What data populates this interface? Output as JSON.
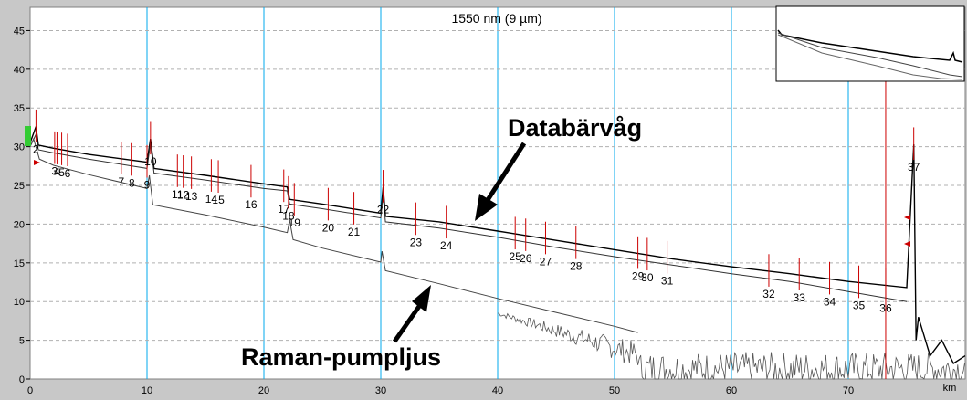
{
  "chart_data": {
    "type": "line",
    "title": "1550 nm (9 µm)",
    "xlabel": "km",
    "ylabel": "",
    "xlim": [
      0,
      80
    ],
    "ylim": [
      0,
      48
    ],
    "x_ticks": [
      0,
      10,
      20,
      30,
      40,
      50,
      60,
      70
    ],
    "y_ticks": [
      0,
      5,
      10,
      15,
      20,
      25,
      30,
      35,
      40,
      45
    ],
    "grid": true,
    "series": [
      {
        "values": [
          [
            0,
            30.5
          ],
          [
            0.5,
            32.6
          ],
          [
            0.7,
            30.2
          ],
          [
            2,
            29.8
          ],
          [
            5,
            29.0
          ],
          [
            10,
            28.0
          ],
          [
            10.3,
            31.0
          ],
          [
            10.6,
            27.2
          ],
          [
            15,
            26.3
          ],
          [
            20,
            25.2
          ],
          [
            22,
            24.8
          ],
          [
            22.2,
            23.2
          ],
          [
            25,
            22.6
          ],
          [
            30,
            21.4
          ],
          [
            30.2,
            24.8
          ],
          [
            30.4,
            21.0
          ],
          [
            35,
            20.3
          ],
          [
            40,
            19.1
          ],
          [
            45,
            17.9
          ],
          [
            50,
            16.7
          ],
          [
            55,
            15.5
          ],
          [
            60,
            14.5
          ],
          [
            65,
            13.6
          ],
          [
            70,
            12.6
          ],
          [
            75,
            11.8
          ],
          [
            75.6,
            30.3
          ],
          [
            75.8,
            5
          ],
          [
            76,
            8
          ],
          [
            77,
            3
          ],
          [
            78,
            5
          ],
          [
            79,
            2
          ],
          [
            80,
            3
          ]
        ]
      },
      {
        "values": [
          [
            0,
            30.0
          ],
          [
            0.5,
            31.6
          ],
          [
            0.7,
            29.6
          ],
          [
            2,
            29.2
          ],
          [
            5,
            28.4
          ],
          [
            10,
            27.2
          ],
          [
            10.3,
            30.5
          ],
          [
            10.6,
            26.6
          ],
          [
            15,
            25.7
          ],
          [
            20,
            24.6
          ],
          [
            22,
            24.3
          ],
          [
            22.2,
            22.6
          ],
          [
            25,
            22.0
          ],
          [
            30,
            20.8
          ],
          [
            30.2,
            23.7
          ],
          [
            30.4,
            20.3
          ],
          [
            35,
            19.5
          ],
          [
            40,
            18.3
          ],
          [
            45,
            17.0
          ],
          [
            50,
            15.8
          ],
          [
            55,
            14.7
          ],
          [
            60,
            13.6
          ],
          [
            65,
            12.6
          ],
          [
            70,
            11.3
          ],
          [
            75,
            10.0
          ]
        ]
      },
      {
        "values": [
          [
            0,
            30.0
          ],
          [
            0.3,
            31.0
          ],
          [
            0.8,
            28.4
          ],
          [
            2,
            27.6
          ],
          [
            5,
            26.4
          ],
          [
            10,
            24.6
          ],
          [
            10.2,
            26.3
          ],
          [
            10.5,
            22.5
          ],
          [
            15,
            21.2
          ],
          [
            20,
            19.6
          ],
          [
            22,
            18.9
          ],
          [
            22.2,
            20.5
          ],
          [
            22.5,
            18.0
          ],
          [
            25,
            16.9
          ],
          [
            30,
            15.1
          ],
          [
            30.1,
            16.5
          ],
          [
            30.4,
            14.0
          ],
          [
            35,
            12.3
          ],
          [
            40,
            10.4
          ],
          [
            45,
            8.6
          ],
          [
            50,
            6.8
          ],
          [
            52,
            6.0
          ]
        ]
      }
    ],
    "events": [
      {
        "label": "2",
        "km": 0.5
      },
      {
        "label": "3",
        "km": 2.1
      },
      {
        "label": "4",
        "km": 2.3
      },
      {
        "label": "5",
        "km": 2.7
      },
      {
        "label": "6",
        "km": 3.2
      },
      {
        "label": "7",
        "km": 7.8
      },
      {
        "label": "8",
        "km": 8.7
      },
      {
        "label": "9",
        "km": 10.0
      },
      {
        "label": "10",
        "km": 10.3
      },
      {
        "label": "11",
        "km": 12.6
      },
      {
        "label": "12",
        "km": 13.1
      },
      {
        "label": "13",
        "km": 13.8
      },
      {
        "label": "14",
        "km": 15.5
      },
      {
        "label": "15",
        "km": 16.1
      },
      {
        "label": "16",
        "km": 18.9
      },
      {
        "label": "17",
        "km": 21.7
      },
      {
        "label": "18",
        "km": 22.1
      },
      {
        "label": "19",
        "km": 22.6
      },
      {
        "label": "20",
        "km": 25.5
      },
      {
        "label": "21",
        "km": 27.7
      },
      {
        "label": "22",
        "km": 30.2
      },
      {
        "label": "23",
        "km": 33.0
      },
      {
        "label": "24",
        "km": 35.6
      },
      {
        "label": "25",
        "km": 41.5
      },
      {
        "label": "26",
        "km": 42.4
      },
      {
        "label": "27",
        "km": 44.1
      },
      {
        "label": "28",
        "km": 46.7
      },
      {
        "label": "29",
        "km": 52.0
      },
      {
        "label": "30",
        "km": 52.8
      },
      {
        "label": "31",
        "km": 54.5
      },
      {
        "label": "32",
        "km": 63.2
      },
      {
        "label": "33",
        "km": 65.8
      },
      {
        "label": "34",
        "km": 68.4
      },
      {
        "label": "35",
        "km": 70.9
      },
      {
        "label": "36",
        "km": 73.2
      },
      {
        "label": "37",
        "km": 75.6
      }
    ],
    "annotations": [
      {
        "text": "Databärvåg"
      },
      {
        "text": "Raman-pumpljus"
      }
    ]
  }
}
